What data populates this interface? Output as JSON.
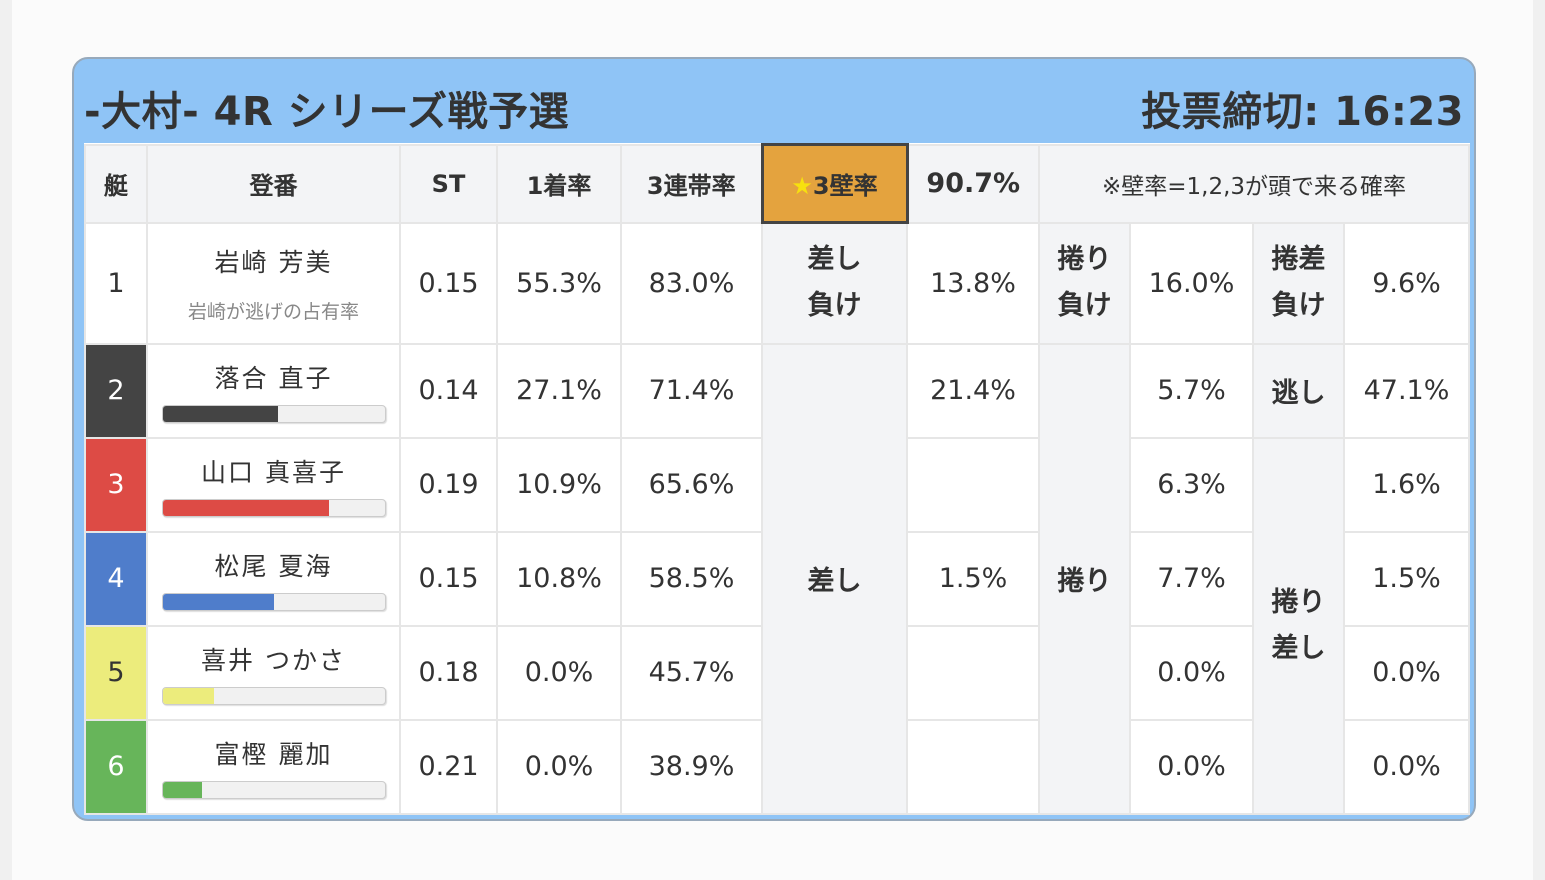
{
  "header": {
    "race_title": "-大村- 4R シリーズ戦予選",
    "deadline": "投票締切: 16:23"
  },
  "columns": {
    "waku": "艇",
    "racer": "登番",
    "st": "ST",
    "first_rate": "1着率",
    "top3_rate": "3連帯率",
    "wall_star": "★",
    "wall_label": "3壁率",
    "wall_value": "90.7%",
    "note": "※壁率=1,2,3が頭で来る確率"
  },
  "tactics": {
    "sashi_make": "差し\n負け",
    "makuri_make": "捲り\n負け",
    "makurizashi_make": "捲差\n負け",
    "nige": "逃し",
    "sashi": "差し",
    "makuri": "捲り",
    "makurizashi": "捲り\n差し"
  },
  "racers": [
    {
      "waku": "1",
      "name": "岩崎 芳美",
      "sub": "岩崎が逃げの占有率",
      "st": "0.15",
      "first": "55.3%",
      "top3": "83.0%",
      "v1": "13.8%",
      "v2": "16.0%",
      "v3": "9.6%"
    },
    {
      "waku": "2",
      "name": "落合 直子",
      "st": "0.14",
      "first": "27.1%",
      "top3": "71.4%",
      "v1": "21.4%",
      "v2": "5.7%",
      "v3": "47.1%",
      "bar": 0.52,
      "color": "#444444"
    },
    {
      "waku": "3",
      "name": "山口 真喜子",
      "st": "0.19",
      "first": "10.9%",
      "top3": "65.6%",
      "v1": "",
      "v2": "6.3%",
      "v3": "1.6%",
      "bar": 0.75,
      "color": "#dd4b45"
    },
    {
      "waku": "4",
      "name": "松尾 夏海",
      "st": "0.15",
      "first": "10.8%",
      "top3": "58.5%",
      "v1": "1.5%",
      "v2": "7.7%",
      "v3": "1.5%",
      "bar": 0.5,
      "color": "#4f7dcb"
    },
    {
      "waku": "5",
      "name": "喜井 つかさ",
      "st": "0.18",
      "first": "0.0%",
      "top3": "45.7%",
      "v1": "",
      "v2": "0.0%",
      "v3": "0.0%",
      "bar": 0.23,
      "color": "#ecec7c"
    },
    {
      "waku": "6",
      "name": "富樫 麗加",
      "st": "0.21",
      "first": "0.0%",
      "top3": "38.9%",
      "v1": "",
      "v2": "0.0%",
      "v3": "0.0%",
      "bar": 0.18,
      "color": "#67b55a"
    }
  ]
}
